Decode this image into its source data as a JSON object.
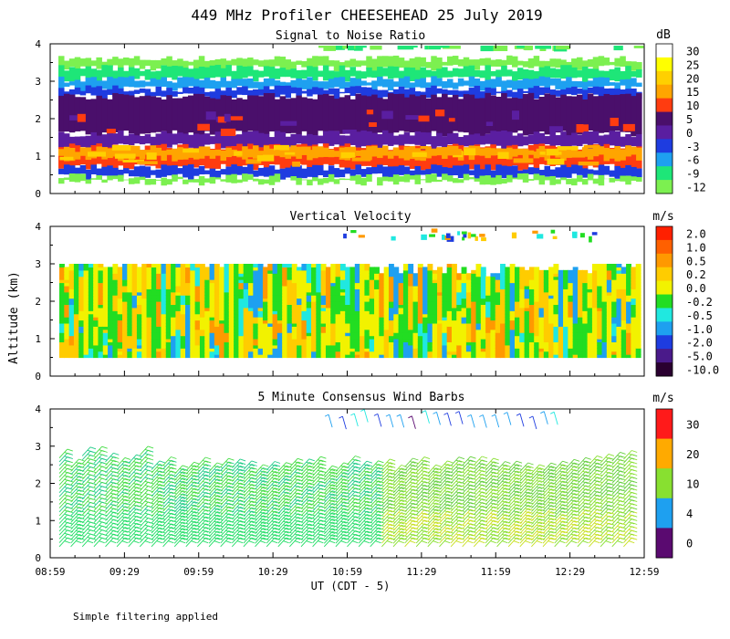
{
  "chart_data": {
    "type": "heatmap",
    "title": "449 MHz Profiler CHEESEHEAD 25 July 2019",
    "ylabel": "Altitude (km)",
    "xlabel": "UT  (CDT - 5)",
    "footnote": "Simple filtering applied",
    "x_ticks": [
      "08:59",
      "09:29",
      "09:59",
      "10:29",
      "10:59",
      "11:29",
      "11:59",
      "12:29",
      "12:59"
    ],
    "y_ticks": [
      "0",
      "1",
      "2",
      "3",
      "4"
    ],
    "ylim": [
      0,
      4
    ],
    "panels": [
      {
        "title": "Signal to Noise Ratio",
        "type": "heatmap",
        "unit": "dB",
        "scale": [
          {
            "label": "30",
            "color": "#ffffff"
          },
          {
            "label": "25",
            "color": "#ffff00"
          },
          {
            "label": "20",
            "color": "#ffd000"
          },
          {
            "label": "15",
            "color": "#ffa500"
          },
          {
            "label": "10",
            "color": "#ff3c10"
          },
          {
            "label": "5",
            "color": "#4a0f6b"
          },
          {
            "label": "0",
            "color": "#5a1ea0"
          },
          {
            "label": "-3",
            "color": "#1e3ce0"
          },
          {
            "label": "-6",
            "color": "#1ea0f0"
          },
          {
            "label": "-9",
            "color": "#1ee678"
          },
          {
            "label": "-12",
            "color": "#7cf050"
          }
        ],
        "layers": [
          {
            "name": "top band",
            "bottom": 3.35,
            "top": 3.6,
            "color": "#7cf050"
          },
          {
            "name": "upper edge",
            "bottom": 3.05,
            "top": 3.35,
            "color": "#1ee678"
          },
          {
            "name": "upper cyan",
            "bottom": 2.8,
            "top": 3.05,
            "color": "#1ea0f0"
          },
          {
            "name": "blue band",
            "bottom": 2.6,
            "top": 2.8,
            "color": "#1e3ce0"
          },
          {
            "name": "purple core",
            "bottom": 1.6,
            "top": 2.6,
            "color": "#4a0f6b"
          },
          {
            "name": "lower purple",
            "bottom": 1.25,
            "top": 1.6,
            "color": "#5a1ea0"
          },
          {
            "name": "red layer",
            "bottom": 0.7,
            "top": 1.25,
            "color": "#ff3c10"
          },
          {
            "name": "orange core",
            "bottom": 0.95,
            "top": 1.2,
            "color": "#ffa500"
          },
          {
            "name": "bottom blue",
            "bottom": 0.45,
            "top": 0.7,
            "color": "#1e3ce0"
          },
          {
            "name": "bottom green",
            "bottom": 0.3,
            "top": 0.45,
            "color": "#7cf050"
          }
        ]
      },
      {
        "title": "Vertical Velocity",
        "type": "heatmap",
        "unit": "m/s",
        "scale": [
          {
            "label": "2.0",
            "color": "#ff2000"
          },
          {
            "label": "1.0",
            "color": "#ff6000"
          },
          {
            "label": "0.5",
            "color": "#ff9900"
          },
          {
            "label": "0.2",
            "color": "#ffcc00"
          },
          {
            "label": "0.0",
            "color": "#f2f200"
          },
          {
            "label": "-0.2",
            "color": "#22dd22"
          },
          {
            "label": "-0.5",
            "color": "#20e8e0"
          },
          {
            "label": "-1.0",
            "color": "#1ea0f0"
          },
          {
            "label": "-2.0",
            "color": "#1e3ce0"
          },
          {
            "label": "-5.0",
            "color": "#4a1a8a"
          },
          {
            "label": "-10.0",
            "color": "#2a0030"
          }
        ],
        "data_range_km": [
          0.5,
          3.0
        ]
      },
      {
        "title": "5 Minute Consensus Wind Barbs",
        "type": "barbs",
        "unit": "m/s",
        "scale": [
          {
            "label": "30",
            "color": "#ff1a1a"
          },
          {
            "label": "20",
            "color": "#ffaa00"
          },
          {
            "label": "10",
            "color": "#88e030"
          },
          {
            "label": "4",
            "color": "#1ea0f0"
          },
          {
            "label": "0",
            "color": "#5a0a70"
          }
        ],
        "data_range_km": [
          0.3,
          2.8
        ],
        "upper_barbs_km": 4.0
      }
    ]
  }
}
